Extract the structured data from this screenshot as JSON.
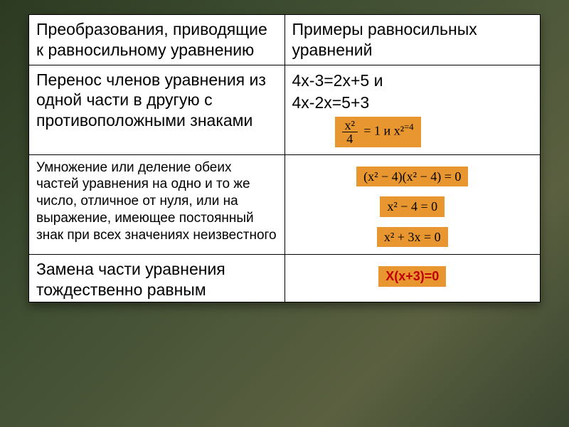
{
  "background": {
    "gradient_colors": [
      "#2d3a22",
      "#3a4a2e",
      "#4a5538",
      "#5a6040",
      "#3a4530"
    ]
  },
  "table": {
    "border_color": "#000000",
    "background_color": "#ffffff",
    "text_color": "#000000",
    "header_fontsize": 23,
    "body_fontsize": 23,
    "row3_fontsize": 19,
    "chip_background": "#e8962f",
    "chip_text_color": "#000000",
    "chip_red_text": "#c00000",
    "columns": [
      "col1",
      "col2"
    ],
    "rows": {
      "r1": {
        "left": "Преобразования, приводящие к равносильному уравнению",
        "right": "Примеры равносильных уравнений"
      },
      "r2": {
        "left": "Перенос членов уравнения из одной части в другую с противоположными знаками",
        "right_line1": "4x-3=2x+5 и",
        "right_line2": "4x-2x=5+3",
        "chip_frac_num": "x²",
        "chip_frac_den": "4",
        "chip_eq_part": " = 1 и x²",
        "chip_eq_sup": "=4"
      },
      "r3": {
        "left": "Умножение или деление обеих частей уравнения на одно и то же число, отличное от нуля, или на выражение, имеющее постоянный знак при всех значениях неизвестного",
        "chip1": "(x² − 4)(x² − 4) = 0",
        "chip2": "x² − 4 = 0",
        "chip3": "x² + 3x = 0"
      },
      "r4": {
        "left": "Замена части уравнения тождественно равным",
        "chip": "X(x+3)=0"
      }
    }
  }
}
